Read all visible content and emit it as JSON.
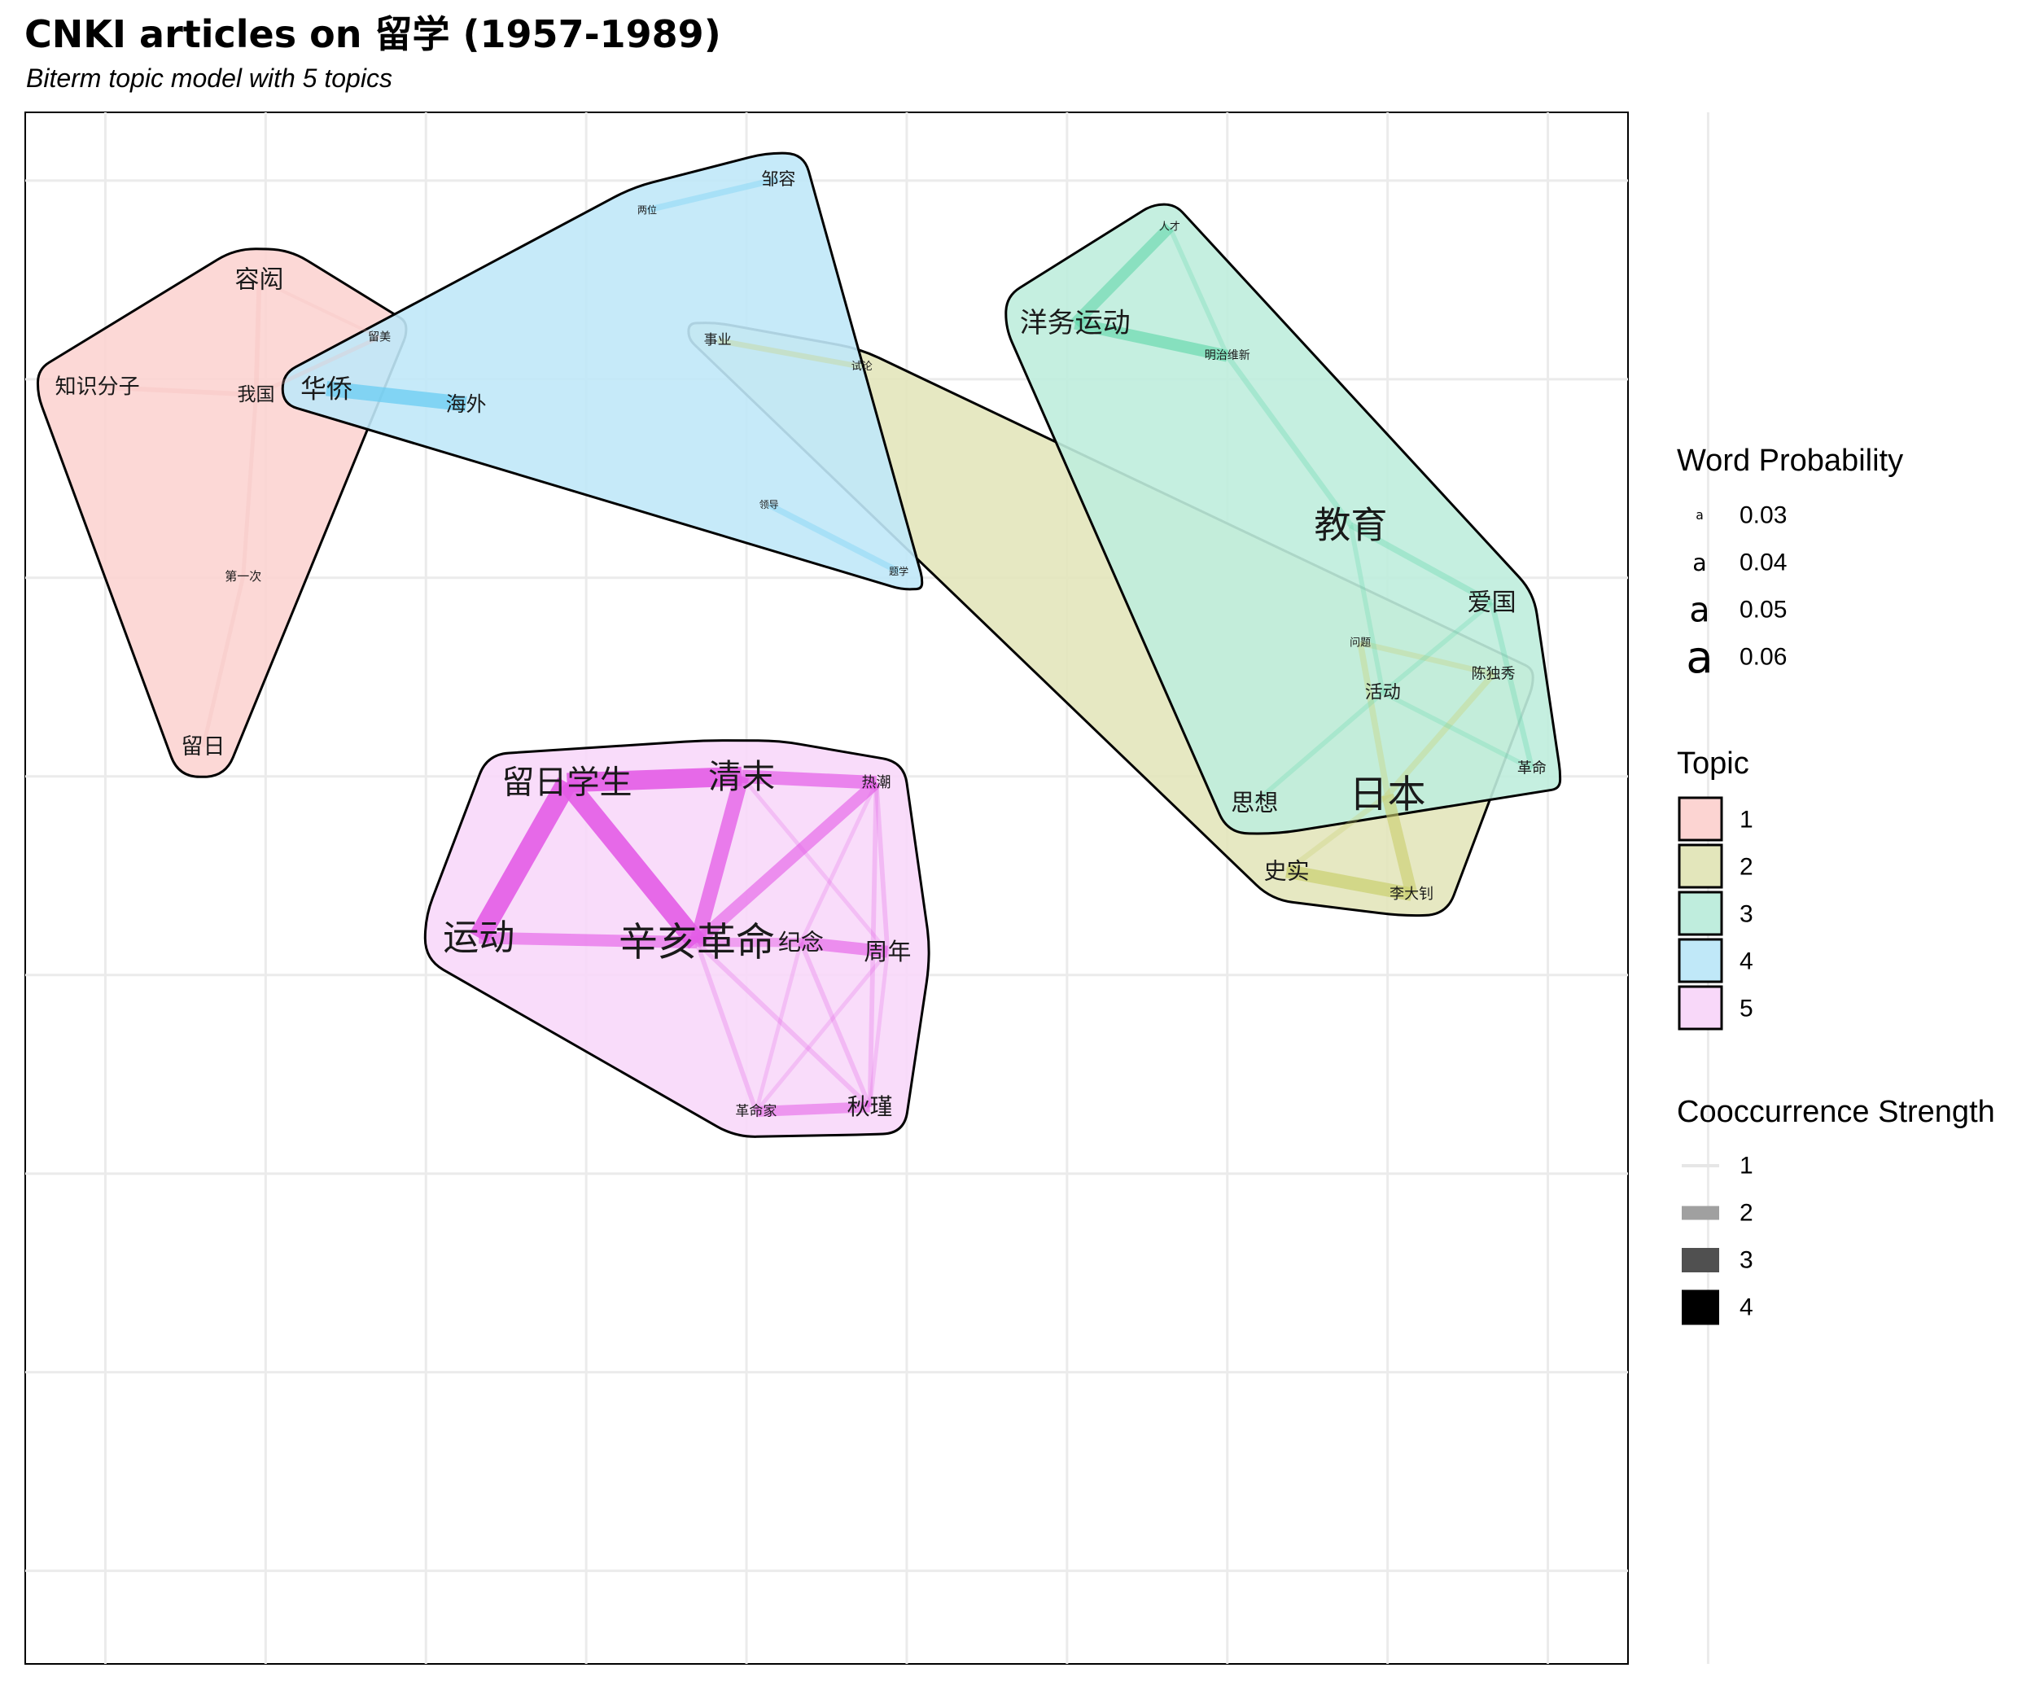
{
  "title": "CNKI articles on 留学 (1957-1989)",
  "subtitle": "Biterm topic model with 5 topics",
  "chart_data": {
    "type": "network",
    "axes": {
      "xlim": [
        0,
        100
      ],
      "ylim": [
        0,
        100
      ],
      "grid": true,
      "tick_labels_shown": false
    },
    "topics": [
      {
        "id": "1",
        "color": "#FCD4D2",
        "words": [
          {
            "word": "容闳",
            "x": 14.6,
            "y": 89.2,
            "prob": 0.048
          },
          {
            "word": "留美",
            "x": 22.1,
            "y": 85.5,
            "prob": 0.032
          },
          {
            "word": "知识分子",
            "x": 4.5,
            "y": 82.3,
            "prob": 0.044
          },
          {
            "word": "我国",
            "x": 14.4,
            "y": 81.8,
            "prob": 0.041
          },
          {
            "word": "第一次",
            "x": 13.6,
            "y": 70.1,
            "prob": 0.033
          },
          {
            "word": "留日",
            "x": 11.1,
            "y": 59.1,
            "prob": 0.045
          }
        ],
        "edges": [
          {
            "from": "容闳",
            "to": "我国",
            "strength": 1.2
          },
          {
            "from": "我国",
            "to": "留美",
            "strength": 1.1
          },
          {
            "from": "知识分子",
            "to": "我国",
            "strength": 1.2
          },
          {
            "from": "我国",
            "to": "第一次",
            "strength": 1.1
          },
          {
            "from": "第一次",
            "to": "留日",
            "strength": 1.1
          },
          {
            "from": "容闳",
            "to": "留美",
            "strength": 1.0
          }
        ]
      },
      {
        "id": "2",
        "color": "#E3E6BB",
        "words": [
          {
            "word": "事业",
            "x": 43.2,
            "y": 85.3,
            "prob": 0.035
          },
          {
            "word": "试论",
            "x": 52.2,
            "y": 83.6,
            "prob": 0.031
          },
          {
            "word": "问题",
            "x": 83.3,
            "y": 65.8,
            "prob": 0.031
          },
          {
            "word": "陈独秀",
            "x": 91.6,
            "y": 63.8,
            "prob": 0.036
          },
          {
            "word": "日本",
            "x": 85.0,
            "y": 56.0,
            "prob": 0.065
          },
          {
            "word": "史实",
            "x": 78.7,
            "y": 51.1,
            "prob": 0.046
          },
          {
            "word": "李大钊",
            "x": 86.5,
            "y": 49.6,
            "prob": 0.036
          }
        ],
        "edges": [
          {
            "from": "事业",
            "to": "试论",
            "strength": 1.3
          },
          {
            "from": "问题",
            "to": "陈独秀",
            "strength": 1.3
          },
          {
            "from": "日本",
            "to": "李大钊",
            "strength": 2.2
          },
          {
            "from": "史实",
            "to": "李大钊",
            "strength": 2.4
          },
          {
            "from": "日本",
            "to": "问题",
            "strength": 1.4
          },
          {
            "from": "日本",
            "to": "陈独秀",
            "strength": 1.4
          },
          {
            "from": "日本",
            "to": "史实",
            "strength": 1.3
          }
        ]
      },
      {
        "id": "3",
        "color": "#BFEDDD",
        "words": [
          {
            "word": "人才",
            "x": 71.4,
            "y": 92.6,
            "prob": 0.031
          },
          {
            "word": "洋务运动",
            "x": 65.5,
            "y": 86.4,
            "prob": 0.052
          },
          {
            "word": "明治维新",
            "x": 75.0,
            "y": 84.3,
            "prob": 0.032
          },
          {
            "word": "教育",
            "x": 82.7,
            "y": 73.4,
            "prob": 0.063
          },
          {
            "word": "爱国",
            "x": 91.5,
            "y": 68.4,
            "prob": 0.048
          },
          {
            "word": "活动",
            "x": 84.7,
            "y": 62.6,
            "prob": 0.04
          },
          {
            "word": "革命",
            "x": 94.0,
            "y": 57.7,
            "prob": 0.036
          },
          {
            "word": "思想",
            "x": 76.7,
            "y": 55.5,
            "prob": 0.047
          }
        ],
        "edges": [
          {
            "from": "人才",
            "to": "洋务运动",
            "strength": 2.1
          },
          {
            "from": "洋务运动",
            "to": "明治维新",
            "strength": 2.2
          },
          {
            "from": "人才",
            "to": "明治维新",
            "strength": 1.2
          },
          {
            "from": "明治维新",
            "to": "教育",
            "strength": 1.3
          },
          {
            "from": "教育",
            "to": "爱国",
            "strength": 1.4
          },
          {
            "from": "教育",
            "to": "活动",
            "strength": 1.2
          },
          {
            "from": "活动",
            "to": "爱国",
            "strength": 1.2
          },
          {
            "from": "爱国",
            "to": "革命",
            "strength": 1.3
          },
          {
            "from": "活动",
            "to": "革命",
            "strength": 1.2
          },
          {
            "from": "活动",
            "to": "思想",
            "strength": 1.2
          }
        ]
      },
      {
        "id": "4",
        "color": "#C0E8F8",
        "words": [
          {
            "word": "邹容",
            "x": 47.0,
            "y": 95.7,
            "prob": 0.039
          },
          {
            "word": "两位",
            "x": 38.8,
            "y": 93.7,
            "prob": 0.03
          },
          {
            "word": "华侨",
            "x": 18.8,
            "y": 82.2,
            "prob": 0.05
          },
          {
            "word": "海外",
            "x": 27.5,
            "y": 81.2,
            "prob": 0.043
          },
          {
            "word": "领导",
            "x": 46.4,
            "y": 74.7,
            "prob": 0.03
          },
          {
            "word": "题学",
            "x": 54.5,
            "y": 70.4,
            "prob": 0.03
          }
        ],
        "edges": [
          {
            "from": "两位",
            "to": "邹容",
            "strength": 1.4
          },
          {
            "from": "华侨",
            "to": "海外",
            "strength": 2.6
          },
          {
            "from": "领导",
            "to": "题学",
            "strength": 1.4
          }
        ]
      },
      {
        "id": "5",
        "color": "#F8D8F9",
        "words": [
          {
            "word": "留日学生",
            "x": 33.8,
            "y": 56.8,
            "prob": 0.058
          },
          {
            "word": "清末",
            "x": 44.7,
            "y": 57.2,
            "prob": 0.059
          },
          {
            "word": "热潮",
            "x": 53.1,
            "y": 56.8,
            "prob": 0.036
          },
          {
            "word": "运动",
            "x": 28.3,
            "y": 46.8,
            "prob": 0.062
          },
          {
            "word": "辛亥革命",
            "x": 41.9,
            "y": 46.5,
            "prob": 0.066
          },
          {
            "word": "纪念",
            "x": 48.4,
            "y": 46.5,
            "prob": 0.046
          },
          {
            "word": "周年",
            "x": 53.8,
            "y": 45.9,
            "prob": 0.047
          },
          {
            "word": "革命家",
            "x": 45.6,
            "y": 35.6,
            "prob": 0.035
          },
          {
            "word": "秋瑾",
            "x": 52.7,
            "y": 35.9,
            "prob": 0.046
          }
        ],
        "edges": [
          {
            "from": "留日学生",
            "to": "清末",
            "strength": 3.2
          },
          {
            "from": "留日学生",
            "to": "运动",
            "strength": 3.4
          },
          {
            "from": "留日学生",
            "to": "辛亥革命",
            "strength": 3.3
          },
          {
            "from": "清末",
            "to": "辛亥革命",
            "strength": 2.6
          },
          {
            "from": "清末",
            "to": "热潮",
            "strength": 2.4
          },
          {
            "from": "运动",
            "to": "辛亥革命",
            "strength": 2.2
          },
          {
            "from": "辛亥革命",
            "to": "热潮",
            "strength": 2.2
          },
          {
            "from": "辛亥革命",
            "to": "纪念",
            "strength": 1.8
          },
          {
            "from": "纪念",
            "to": "周年",
            "strength": 2.2
          },
          {
            "from": "革命家",
            "to": "秋瑾",
            "strength": 2.0
          },
          {
            "from": "辛亥革命",
            "to": "革命家",
            "strength": 1.2
          },
          {
            "from": "辛亥革命",
            "to": "秋瑾",
            "strength": 1.2
          },
          {
            "from": "热潮",
            "to": "周年",
            "strength": 1.2
          },
          {
            "from": "热潮",
            "to": "秋瑾",
            "strength": 1.2
          },
          {
            "from": "纪念",
            "to": "秋瑾",
            "strength": 1.2
          },
          {
            "from": "纪念",
            "to": "革命家",
            "strength": 1.1
          },
          {
            "from": "周年",
            "to": "秋瑾",
            "strength": 1.1
          },
          {
            "from": "周年",
            "to": "革命家",
            "strength": 1.1
          },
          {
            "from": "清末",
            "to": "周年",
            "strength": 1.1
          },
          {
            "from": "热潮",
            "to": "纪念",
            "strength": 1.1
          }
        ]
      }
    ],
    "legends": {
      "probability": {
        "title": "Word Probability",
        "sample_glyph": "a",
        "values": [
          0.03,
          0.04,
          0.05,
          0.06
        ],
        "labels": [
          "0.03",
          "0.04",
          "0.05",
          "0.06"
        ]
      },
      "topic": {
        "title": "Topic",
        "labels": [
          "1",
          "2",
          "3",
          "4",
          "5"
        ]
      },
      "cooccurrence": {
        "title": "Cooccurrence Strength",
        "values": [
          1,
          2,
          3,
          4
        ],
        "labels": [
          "1",
          "2",
          "3",
          "4"
        ]
      }
    }
  }
}
